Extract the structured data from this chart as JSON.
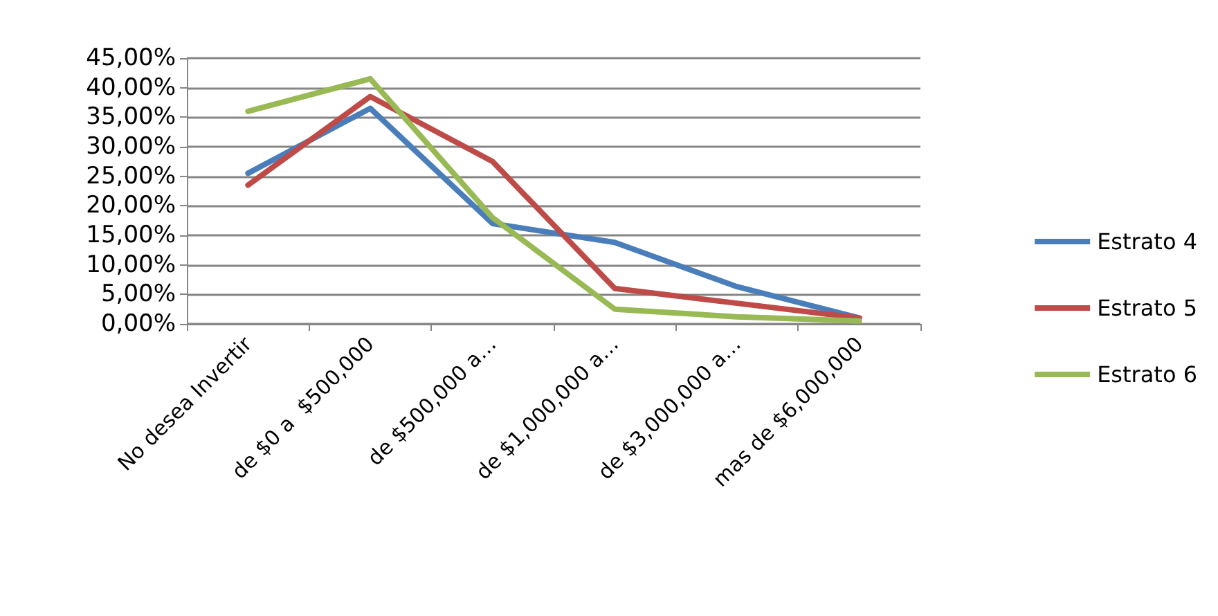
{
  "chart_data": {
    "type": "line",
    "categories": [
      "No desea Invertir",
      "de $0 a  $500,000",
      "de $500,000 a…",
      "de $1,000,000 a…",
      "de $3,000,000 a…",
      "mas de $6,000,000"
    ],
    "series": [
      {
        "name": "Estrato 4",
        "color": "#4a7ebb",
        "values": [
          25.5,
          36.5,
          17,
          13.8,
          6.3,
          1
        ]
      },
      {
        "name": "Estrato 5",
        "color": "#be4b48",
        "values": [
          23.5,
          38.5,
          27.5,
          6,
          3.5,
          1
        ]
      },
      {
        "name": "Estrato 6",
        "color": "#98b954",
        "values": [
          36,
          41.5,
          18,
          2.5,
          1.2,
          0.5
        ]
      }
    ],
    "ylim": [
      0,
      45
    ],
    "yticks": [
      {
        "value": 0,
        "label": "0,00%"
      },
      {
        "value": 5,
        "label": "5,00%"
      },
      {
        "value": 10,
        "label": "10,00%"
      },
      {
        "value": 15,
        "label": "15,00%"
      },
      {
        "value": 20,
        "label": "20,00%"
      },
      {
        "value": 25,
        "label": "25,00%"
      },
      {
        "value": 30,
        "label": "30,00%"
      },
      {
        "value": 35,
        "label": "35,00%"
      },
      {
        "value": 40,
        "label": "40,00%"
      },
      {
        "value": 45,
        "label": "45,00%"
      }
    ],
    "grid": "y",
    "legend": "right",
    "marker": "none",
    "line_style": "solid"
  }
}
